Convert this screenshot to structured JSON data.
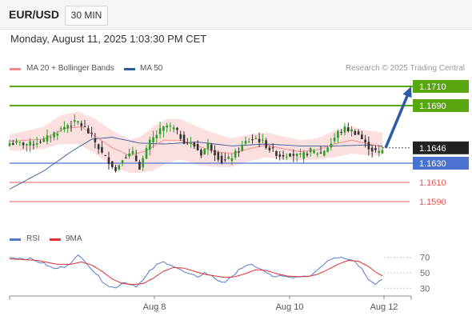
{
  "header": {
    "symbol": "EUR/USD",
    "timeframe": "30 MIN"
  },
  "datetime": "Monday, August 11, 2025 1:03:30 PM CET",
  "legend": {
    "ma20_label": "MA 20 + Bollinger Bands",
    "ma50_label": "MA 50",
    "credit": "Research © 2025 Trading Central",
    "rsi_label": "RSI",
    "ma9_label": "9MA"
  },
  "colors": {
    "ma20": "#f08c8c",
    "ma50": "#2f5b9a",
    "bands": "#fbd6d6",
    "candle_up": "#2ca02c",
    "candle_down": "#333333",
    "resistance": "#57a80f",
    "support_blue": "#4a74d0",
    "support_red": "#e05a5a",
    "arrow": "#2d5aa8",
    "current": "#222222",
    "rsi": "#5577cc",
    "rsi_ma": "#e03030"
  },
  "chart_data": [
    {
      "type": "candlestick",
      "xlabels": [
        "Aug 8",
        "Aug 10",
        "Aug 12"
      ],
      "ylim": [
        1.1565,
        1.1725
      ],
      "levels": [
        {
          "value": 1.171,
          "label": "1.1710",
          "kind": "resistance"
        },
        {
          "value": 1.169,
          "label": "1.1690",
          "kind": "resistance"
        },
        {
          "value": 1.1646,
          "label": "1.1646",
          "kind": "current"
        },
        {
          "value": 1.163,
          "label": "1.1630",
          "kind": "pivot"
        },
        {
          "value": 1.161,
          "label": "1.1610",
          "kind": "support"
        },
        {
          "value": 1.159,
          "label": "1.1590",
          "kind": "support"
        }
      ],
      "forecast_arrow": {
        "from": 1.1646,
        "to": 1.171
      },
      "close_waypoints": [
        [
          0,
          1.1651
        ],
        [
          6,
          1.165
        ],
        [
          10,
          1.1654
        ],
        [
          13,
          1.1661
        ],
        [
          17,
          1.167
        ],
        [
          20,
          1.1673
        ],
        [
          22,
          1.1666
        ],
        [
          24,
          1.1658
        ],
        [
          27,
          1.164
        ],
        [
          30,
          1.1628
        ],
        [
          31,
          1.1622
        ],
        [
          33,
          1.1636
        ],
        [
          36,
          1.164
        ],
        [
          38,
          1.1626
        ],
        [
          41,
          1.1652
        ],
        [
          44,
          1.1664
        ],
        [
          46,
          1.1669
        ],
        [
          48,
          1.1666
        ],
        [
          51,
          1.1653
        ],
        [
          54,
          1.1648
        ],
        [
          56,
          1.164
        ],
        [
          58,
          1.165
        ],
        [
          60,
          1.1641
        ],
        [
          62,
          1.1632
        ],
        [
          64,
          1.1634
        ],
        [
          66,
          1.164
        ],
        [
          69,
          1.1652
        ],
        [
          72,
          1.1656
        ],
        [
          74,
          1.1652
        ],
        [
          76,
          1.1645
        ],
        [
          79,
          1.1638
        ],
        [
          82,
          1.164
        ],
        [
          85,
          1.1637
        ],
        [
          88,
          1.1643
        ],
        [
          91,
          1.164
        ],
        [
          94,
          1.1651
        ],
        [
          96,
          1.1662
        ],
        [
          98,
          1.1666
        ],
        [
          100,
          1.1664
        ],
        [
          102,
          1.166
        ],
        [
          104,
          1.165
        ],
        [
          106,
          1.1644
        ],
        [
          108,
          1.1641
        ],
        [
          109,
          1.1643
        ]
      ],
      "ma20_waypoints": [
        [
          0,
          1.1653
        ],
        [
          10,
          1.1655
        ],
        [
          16,
          1.1666
        ],
        [
          21,
          1.1668
        ],
        [
          25,
          1.1658
        ],
        [
          30,
          1.1646
        ],
        [
          35,
          1.1638
        ],
        [
          40,
          1.1643
        ],
        [
          45,
          1.1654
        ],
        [
          50,
          1.1654
        ],
        [
          55,
          1.1648
        ],
        [
          60,
          1.1642
        ],
        [
          65,
          1.164
        ],
        [
          70,
          1.1645
        ],
        [
          75,
          1.1649
        ],
        [
          80,
          1.1645
        ],
        [
          85,
          1.1642
        ],
        [
          90,
          1.1644
        ],
        [
          95,
          1.165
        ],
        [
          100,
          1.1654
        ],
        [
          105,
          1.165
        ],
        [
          109,
          1.1647
        ]
      ],
      "ma50_waypoints": [
        [
          0,
          1.1603
        ],
        [
          10,
          1.1622
        ],
        [
          18,
          1.1642
        ],
        [
          24,
          1.1655
        ],
        [
          30,
          1.1657
        ],
        [
          38,
          1.1651
        ],
        [
          45,
          1.165
        ],
        [
          55,
          1.1652
        ],
        [
          65,
          1.1648
        ],
        [
          75,
          1.165
        ],
        [
          85,
          1.1648
        ],
        [
          95,
          1.1648
        ],
        [
          105,
          1.1649
        ],
        [
          109,
          1.1648
        ]
      ],
      "bands_waypoints": [
        [
          0,
          1.166,
          1.1643
        ],
        [
          5,
          1.1664,
          1.1643
        ],
        [
          10,
          1.1668,
          1.1645
        ],
        [
          15,
          1.168,
          1.165
        ],
        [
          20,
          1.1684,
          1.165
        ],
        [
          25,
          1.1676,
          1.164
        ],
        [
          30,
          1.1664,
          1.1626
        ],
        [
          35,
          1.1655,
          1.162
        ],
        [
          38,
          1.1657,
          1.162
        ],
        [
          42,
          1.1668,
          1.1622
        ],
        [
          46,
          1.1676,
          1.163
        ],
        [
          50,
          1.1676,
          1.1634
        ],
        [
          55,
          1.1668,
          1.1628
        ],
        [
          60,
          1.1661,
          1.1626
        ],
        [
          65,
          1.1656,
          1.1626
        ],
        [
          70,
          1.166,
          1.1632
        ],
        [
          75,
          1.1662,
          1.1636
        ],
        [
          80,
          1.1658,
          1.1634
        ],
        [
          85,
          1.1654,
          1.1633
        ],
        [
          90,
          1.1656,
          1.1634
        ],
        [
          95,
          1.1664,
          1.1636
        ],
        [
          100,
          1.1668,
          1.164
        ],
        [
          105,
          1.1664,
          1.1638
        ],
        [
          109,
          1.1662,
          1.1638
        ]
      ],
      "bar_count": 110
    },
    {
      "type": "line",
      "title": "RSI",
      "yticks": [
        70,
        50,
        30
      ],
      "ylim": [
        20,
        80
      ],
      "series": [
        {
          "name": "RSI",
          "waypoints": [
            [
              0,
              70
            ],
            [
              6,
              68
            ],
            [
              10,
              62
            ],
            [
              13,
              55
            ],
            [
              16,
              58
            ],
            [
              18,
              64
            ],
            [
              20,
              72
            ],
            [
              22,
              66
            ],
            [
              24,
              55
            ],
            [
              26,
              45
            ],
            [
              27,
              40
            ],
            [
              29,
              33
            ],
            [
              31,
              30
            ],
            [
              33,
              38
            ],
            [
              35,
              36
            ],
            [
              37,
              33
            ],
            [
              39,
              40
            ],
            [
              41,
              52
            ],
            [
              43,
              60
            ],
            [
              45,
              64
            ],
            [
              47,
              61
            ],
            [
              49,
              56
            ],
            [
              51,
              51
            ],
            [
              53,
              47
            ],
            [
              55,
              45
            ],
            [
              57,
              50
            ],
            [
              59,
              46
            ],
            [
              61,
              40
            ],
            [
              63,
              38
            ],
            [
              65,
              44
            ],
            [
              67,
              55
            ],
            [
              69,
              58
            ],
            [
              71,
              60
            ],
            [
              73,
              56
            ],
            [
              75,
              50
            ],
            [
              77,
              45
            ],
            [
              79,
              46
            ],
            [
              81,
              44
            ],
            [
              83,
              43
            ],
            [
              85,
              46
            ],
            [
              87,
              44
            ],
            [
              89,
              50
            ],
            [
              91,
              58
            ],
            [
              93,
              66
            ],
            [
              95,
              70
            ],
            [
              97,
              71
            ],
            [
              99,
              68
            ],
            [
              101,
              65
            ],
            [
              103,
              55
            ],
            [
              105,
              42
            ],
            [
              107,
              36
            ],
            [
              109,
              42
            ]
          ]
        },
        {
          "name": "9MA",
          "waypoints": [
            [
              0,
              68
            ],
            [
              8,
              66
            ],
            [
              14,
              61
            ],
            [
              18,
              61
            ],
            [
              21,
              64
            ],
            [
              24,
              60
            ],
            [
              27,
              52
            ],
            [
              30,
              42
            ],
            [
              33,
              36
            ],
            [
              36,
              35
            ],
            [
              39,
              36
            ],
            [
              42,
              43
            ],
            [
              45,
              52
            ],
            [
              48,
              57
            ],
            [
              51,
              56
            ],
            [
              54,
              52
            ],
            [
              57,
              48
            ],
            [
              60,
              46
            ],
            [
              63,
              44
            ],
            [
              66,
              45
            ],
            [
              69,
              49
            ],
            [
              72,
              54
            ],
            [
              75,
              53
            ],
            [
              78,
              49
            ],
            [
              81,
              46
            ],
            [
              84,
              45
            ],
            [
              87,
              45
            ],
            [
              90,
              48
            ],
            [
              93,
              54
            ],
            [
              96,
              61
            ],
            [
              99,
              66
            ],
            [
              102,
              65
            ],
            [
              105,
              58
            ],
            [
              107,
              51
            ],
            [
              109,
              46
            ]
          ]
        }
      ]
    }
  ]
}
